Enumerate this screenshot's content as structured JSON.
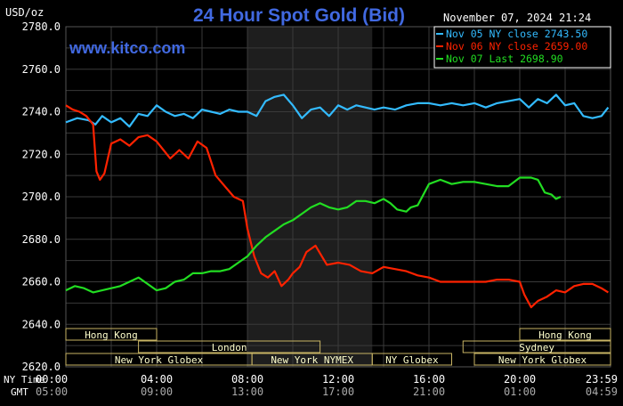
{
  "header": {
    "unit_label": "USD/oz",
    "title": "24 Hour Spot Gold (Bid)",
    "datetime": "November 07, 2024 21:24",
    "watermark": "www.kitco.com"
  },
  "colors": {
    "background": "#000000",
    "plot_background": "#000000",
    "grid": "#3a3a3a",
    "ny_session_band": "#1e1e1e",
    "title": "#4169e1",
    "watermark": "#4169e1",
    "axis_text": "#ffffff",
    "market_bar_fill": "#ffffcc",
    "market_bar_stroke": "#c8b464",
    "market_bar_text": "#000000"
  },
  "legend": [
    {
      "label": "Nov 05 NY close 2743.50",
      "color": "#33bbff"
    },
    {
      "label": "Nov 06 NY close 2659.00",
      "color": "#ff2200"
    },
    {
      "label": "Nov 07 Last 2698.90",
      "color": "#22dd22"
    }
  ],
  "markets": [
    {
      "label": "Hong Kong",
      "start": 0,
      "end": 4
    },
    {
      "label": "London",
      "start": 3.2,
      "end": 11.2
    },
    {
      "label": "New York Globex",
      "start": 0,
      "end": 8.2
    },
    {
      "label": "New York NYMEX",
      "start": 8.2,
      "end": 13.5
    },
    {
      "label": "NY Globex",
      "start": 13.5,
      "end": 17
    },
    {
      "label": "Hong Kong",
      "start": 20,
      "end": 24
    },
    {
      "label": "Sydney",
      "start": 17.5,
      "end": 24
    },
    {
      "label": "New York Globex",
      "start": 18,
      "end": 24
    }
  ],
  "time_axis": {
    "ny_prefix": "NY Time",
    "gmt_prefix": "GMT",
    "ny_ticks": [
      "00:00",
      "04:00",
      "08:00",
      "12:00",
      "16:00",
      "20:00",
      "23:59"
    ],
    "gmt_ticks": [
      "05:00",
      "09:00",
      "13:00",
      "17:00",
      "21:00",
      "01:00",
      "04:59"
    ]
  },
  "chart_data": {
    "type": "line",
    "title": "24 Hour Spot Gold (Bid)",
    "ylabel": "USD/oz",
    "xlabel": "NY Time",
    "ylim": [
      2620,
      2780
    ],
    "xlim": [
      0,
      24
    ],
    "y_ticks": [
      "2780.0",
      "2760.0",
      "2740.0",
      "2720.0",
      "2700.0",
      "2680.0",
      "2660.0",
      "2640.0",
      "2620.0"
    ],
    "grid": true,
    "legend_position": "top-right",
    "highlight_band": [
      8,
      13.5
    ],
    "series": [
      {
        "name": "Nov 05 NY close 2743.50",
        "x": [
          0,
          0.5,
          1,
          1.3,
          1.6,
          2,
          2.4,
          2.8,
          3.2,
          3.6,
          4,
          4.4,
          4.8,
          5.2,
          5.6,
          6,
          6.4,
          6.8,
          7.2,
          7.6,
          8,
          8.4,
          8.8,
          9.2,
          9.6,
          10,
          10.4,
          10.8,
          11.2,
          11.6,
          12,
          12.4,
          12.8,
          13.2,
          13.6,
          14,
          14.5,
          15,
          15.5,
          16,
          16.5,
          17,
          17.5,
          18,
          18.5,
          19,
          19.5,
          20,
          20.4,
          20.8,
          21.2,
          21.6,
          22,
          22.4,
          22.8,
          23.2,
          23.6,
          23.9
        ],
        "y": [
          2735,
          2737,
          2736,
          2734,
          2738,
          2735,
          2737,
          2733,
          2739,
          2738,
          2743,
          2740,
          2738,
          2739,
          2737,
          2741,
          2740,
          2739,
          2741,
          2740,
          2740,
          2738,
          2745,
          2747,
          2748,
          2743,
          2737,
          2741,
          2742,
          2738,
          2743,
          2741,
          2743,
          2742,
          2741,
          2742,
          2741,
          2743,
          2744,
          2744,
          2743,
          2744,
          2743,
          2744,
          2742,
          2744,
          2745,
          2746,
          2742,
          2746,
          2744,
          2748,
          2743,
          2744,
          2738,
          2737,
          2738,
          2742
        ]
      },
      {
        "name": "Nov 06 NY close 2659.00",
        "x": [
          0,
          0.3,
          0.6,
          0.9,
          1.2,
          1.35,
          1.5,
          1.7,
          2,
          2.4,
          2.8,
          3.2,
          3.6,
          4,
          4.3,
          4.6,
          5,
          5.4,
          5.8,
          6.2,
          6.6,
          7,
          7.4,
          7.8,
          8,
          8.3,
          8.6,
          8.9,
          9.2,
          9.5,
          9.8,
          10,
          10.3,
          10.6,
          11,
          11.5,
          12,
          12.5,
          13,
          13.5,
          14,
          14.5,
          15,
          15.5,
          16,
          16.5,
          17,
          17.5,
          18,
          18.5,
          19,
          19.5,
          20,
          20.2,
          20.5,
          20.8,
          21.2,
          21.6,
          22,
          22.4,
          22.8,
          23.2,
          23.6,
          23.9
        ],
        "y": [
          2743,
          2741,
          2740,
          2738,
          2734,
          2712,
          2708,
          2711,
          2725,
          2727,
          2724,
          2728,
          2729,
          2726,
          2722,
          2718,
          2722,
          2718,
          2726,
          2723,
          2710,
          2705,
          2700,
          2698,
          2685,
          2672,
          2664,
          2662,
          2665,
          2658,
          2661,
          2664,
          2667,
          2674,
          2677,
          2668,
          2669,
          2668,
          2665,
          2664,
          2667,
          2666,
          2665,
          2663,
          2662,
          2660,
          2660,
          2660,
          2660,
          2660,
          2661,
          2661,
          2660,
          2654,
          2648,
          2651,
          2653,
          2656,
          2655,
          2658,
          2659,
          2659,
          2657,
          2655
        ]
      },
      {
        "name": "Nov 07 Last 2698.90",
        "x": [
          0,
          0.4,
          0.8,
          1.2,
          1.6,
          2,
          2.4,
          2.8,
          3.2,
          3.6,
          4,
          4.4,
          4.8,
          5.2,
          5.6,
          6,
          6.4,
          6.8,
          7.2,
          7.6,
          8,
          8.4,
          8.8,
          9.2,
          9.6,
          10,
          10.4,
          10.8,
          11.2,
          11.6,
          12,
          12.4,
          12.8,
          13.2,
          13.6,
          14,
          14.3,
          14.6,
          15,
          15.2,
          15.5,
          16,
          16.5,
          17,
          17.5,
          18,
          18.5,
          19,
          19.5,
          20,
          20.5,
          20.8,
          21.1,
          21.4,
          21.6,
          21.8
        ],
        "y": [
          2656,
          2658,
          2657,
          2655,
          2656,
          2657,
          2658,
          2660,
          2662,
          2659,
          2656,
          2657,
          2660,
          2661,
          2664,
          2664,
          2665,
          2665,
          2666,
          2669,
          2672,
          2677,
          2681,
          2684,
          2687,
          2689,
          2692,
          2695,
          2697,
          2695,
          2694,
          2695,
          2698,
          2698,
          2697,
          2699,
          2697,
          2694,
          2693,
          2695,
          2696,
          2706,
          2708,
          2706,
          2707,
          2707,
          2706,
          2705,
          2705,
          2709,
          2709,
          2708,
          2702,
          2701,
          2699,
          2700
        ]
      }
    ]
  }
}
